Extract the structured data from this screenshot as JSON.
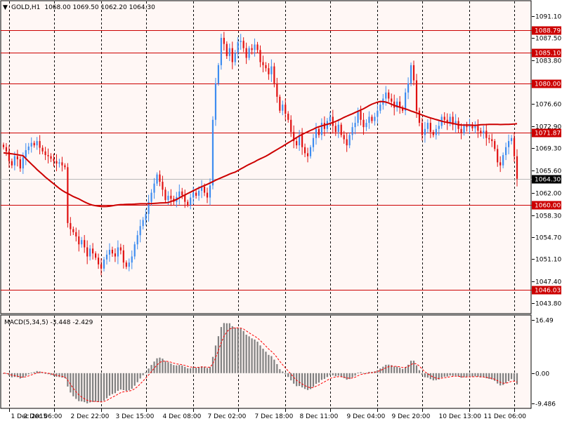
{
  "header": {
    "symbol": "GOLD,H1",
    "ohlc": "1068.00 1069.50 1062.20 1064.30"
  },
  "macd_header": {
    "label": "MACD(5,34,5) -3.448 -2.429"
  },
  "colors": {
    "background": "#fff7f5",
    "bull": "#3d8cf0",
    "bear": "#e01010",
    "hline": "#cc0000",
    "ma": "#cc0000",
    "hist": "#808080",
    "signal": "#ff0000",
    "frame": "#000000"
  },
  "chart_data": [
    {
      "type": "candlestick",
      "symbol": "GOLD",
      "timeframe": "H1",
      "ylim": [
        1042.2,
        1093.5
      ],
      "yticks": [
        "1091.10",
        "1087.50",
        "1083.80",
        "1076.60",
        "1072.90",
        "1069.30",
        "1065.60",
        "1062.00",
        "1058.30",
        "1054.70",
        "1051.10",
        "1047.40",
        "1043.80"
      ],
      "x_labels": [
        "1 Dec 2015",
        "2 Dec 06:00",
        "2 Dec 22:00",
        "3 Dec 15:00",
        "4 Dec 08:00",
        "7 Dec 02:00",
        "7 Dec 18:00",
        "8 Dec 11:00",
        "9 Dec 04:00",
        "9 Dec 20:00",
        "10 Dec 13:00",
        "11 Dec 06:00"
      ],
      "price_lines": [
        {
          "value": 1088.79,
          "label": "1088.79"
        },
        {
          "value": 1085.1,
          "label": "1085.10"
        },
        {
          "value": 1080.0,
          "label": "1080.00"
        },
        {
          "value": 1071.87,
          "label": "1071.87"
        },
        {
          "value": 1060.0,
          "label": "1060.00"
        },
        {
          "value": 1046.03,
          "label": "1046.03"
        }
      ],
      "current_price": {
        "value": 1064.3,
        "label": "1064.30"
      },
      "close_series": [
        1069.5,
        1068.8,
        1067.2,
        1066.5,
        1068.0,
        1067.5,
        1066.0,
        1067.8,
        1069.0,
        1069.6,
        1070.2,
        1069.8,
        1070.5,
        1069.4,
        1068.8,
        1068.2,
        1068.0,
        1067.6,
        1067.2,
        1066.8,
        1067.0,
        1066.5,
        1066.2,
        1057.0,
        1056.0,
        1055.5,
        1054.8,
        1053.5,
        1054.2,
        1053.0,
        1051.5,
        1052.8,
        1052.0,
        1051.3,
        1050.2,
        1049.5,
        1051.0,
        1051.8,
        1052.6,
        1052.0,
        1051.5,
        1053.0,
        1052.5,
        1050.5,
        1049.8,
        1050.5,
        1051.5,
        1053.5,
        1055.0,
        1056.5,
        1057.5,
        1058.5,
        1060.5,
        1062.0,
        1063.5,
        1065.0,
        1063.8,
        1062.5,
        1060.8,
        1061.5,
        1061.0,
        1060.5,
        1061.3,
        1062.2,
        1061.6,
        1060.5,
        1060.0,
        1061.2,
        1062.0,
        1061.5,
        1062.3,
        1063.0,
        1062.0,
        1061.2,
        1063.2,
        1074.0,
        1080.0,
        1083.0,
        1087.5,
        1086.5,
        1084.5,
        1085.8,
        1083.5,
        1085.0,
        1086.8,
        1087.0,
        1085.8,
        1084.2,
        1085.8,
        1085.5,
        1086.4,
        1085.5,
        1083.5,
        1083.0,
        1082.5,
        1081.5,
        1082.8,
        1080.0,
        1077.8,
        1075.5,
        1076.5,
        1075.0,
        1074.0,
        1072.0,
        1070.5,
        1069.8,
        1071.5,
        1069.5,
        1068.5,
        1068.0,
        1069.5,
        1071.0,
        1072.5,
        1071.5,
        1073.5,
        1072.5,
        1073.8,
        1074.5,
        1073.0,
        1072.0,
        1073.2,
        1071.5,
        1070.8,
        1069.8,
        1071.5,
        1072.8,
        1073.5,
        1075.5,
        1074.0,
        1072.8,
        1073.5,
        1074.5,
        1073.8,
        1074.5,
        1075.5,
        1076.5,
        1077.5,
        1078.5,
        1077.5,
        1077.0,
        1076.0,
        1077.0,
        1076.0,
        1075.5,
        1078.5,
        1080.0,
        1083.0,
        1080.5,
        1075.5,
        1073.5,
        1071.5,
        1072.5,
        1073.5,
        1072.0,
        1071.5,
        1072.5,
        1073.0,
        1074.5,
        1074.0,
        1073.5,
        1074.5,
        1073.2,
        1073.8,
        1072.5,
        1071.8,
        1073.0,
        1072.8,
        1073.2,
        1072.6,
        1073.0,
        1072.2,
        1071.8,
        1072.2,
        1071.0,
        1070.8,
        1070.5,
        1069.2,
        1067.0,
        1066.5,
        1068.2,
        1069.5,
        1070.5,
        1071.0,
        1068.0,
        1064.3
      ]
    },
    {
      "type": "bar",
      "indicator": "MACD(5,34,5)",
      "main": -3.448,
      "signal": -2.429,
      "ylim": [
        -10.7,
        17.8
      ],
      "yticks": [
        "16.49",
        "0.00",
        "-9.486"
      ]
    }
  ]
}
